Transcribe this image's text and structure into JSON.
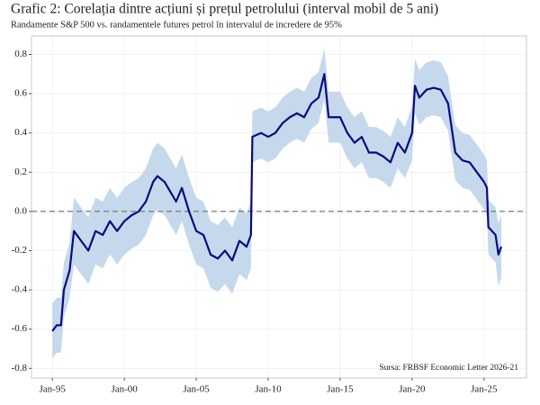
{
  "chart_data": {
    "type": "band-line",
    "title": "Grafic 2: Corelația dintre acțiuni și prețul petrolului (interval mobil de 5 ani)",
    "subtitle": "Randamente S&P 500 vs. randamentele futures petrol în intervalul de incredere de 95%",
    "source": "Sursa: FRBSF Economic Letter 2026-21",
    "color": "#0a0a80",
    "band_color": "#c6d9ec",
    "grid": true,
    "reference_line": 0,
    "x": [
      1995.0,
      1995.3,
      1995.6,
      1995.8,
      1996.2,
      1996.5,
      1997.0,
      1997.5,
      1998.0,
      1998.5,
      1999.0,
      1999.5,
      2000.0,
      2000.5,
      2001.0,
      2001.5,
      2002.0,
      2002.3,
      2002.8,
      2003.2,
      2003.6,
      2004.0,
      2004.5,
      2005.0,
      2005.5,
      2006.0,
      2006.5,
      2007.0,
      2007.5,
      2008.0,
      2008.5,
      2008.8,
      2008.9,
      2009.5,
      2010.0,
      2010.5,
      2011.0,
      2011.5,
      2012.0,
      2012.5,
      2013.0,
      2013.5,
      2013.9,
      2014.2,
      2015.0,
      2015.5,
      2016.0,
      2016.5,
      2017.0,
      2017.5,
      2018.0,
      2018.5,
      2019.0,
      2019.5,
      2020.0,
      2020.2,
      2020.5,
      2021.0,
      2021.5,
      2022.0,
      2022.5,
      2023.0,
      2023.5,
      2024.0,
      2024.5,
      2025.0,
      2025.2,
      2025.3,
      2025.8,
      2026.0,
      2026.2
    ],
    "values": [
      -0.61,
      -0.58,
      -0.58,
      -0.4,
      -0.3,
      -0.1,
      -0.15,
      -0.2,
      -0.1,
      -0.12,
      -0.05,
      -0.1,
      -0.05,
      -0.02,
      0.0,
      0.05,
      0.15,
      0.18,
      0.15,
      0.1,
      0.05,
      0.12,
      0.0,
      -0.1,
      -0.12,
      -0.22,
      -0.24,
      -0.2,
      -0.25,
      -0.15,
      -0.18,
      -0.12,
      0.38,
      0.4,
      0.38,
      0.4,
      0.45,
      0.48,
      0.5,
      0.48,
      0.55,
      0.58,
      0.7,
      0.48,
      0.48,
      0.4,
      0.35,
      0.38,
      0.3,
      0.3,
      0.28,
      0.25,
      0.35,
      0.3,
      0.4,
      0.64,
      0.58,
      0.62,
      0.63,
      0.62,
      0.55,
      0.3,
      0.26,
      0.25,
      0.2,
      0.15,
      0.12,
      -0.08,
      -0.12,
      -0.22,
      -0.18
    ],
    "lower": [
      -0.75,
      -0.72,
      -0.72,
      -0.54,
      -0.44,
      -0.27,
      -0.32,
      -0.37,
      -0.27,
      -0.29,
      -0.22,
      -0.27,
      -0.22,
      -0.19,
      -0.17,
      -0.12,
      -0.02,
      0.01,
      -0.02,
      -0.07,
      -0.12,
      -0.05,
      -0.17,
      -0.27,
      -0.29,
      -0.39,
      -0.41,
      -0.37,
      -0.42,
      -0.32,
      -0.35,
      -0.29,
      0.25,
      0.27,
      0.25,
      0.27,
      0.32,
      0.35,
      0.37,
      0.35,
      0.42,
      0.45,
      0.57,
      0.35,
      0.35,
      0.27,
      0.22,
      0.25,
      0.17,
      0.17,
      0.15,
      0.12,
      0.22,
      0.17,
      0.26,
      0.5,
      0.44,
      0.48,
      0.49,
      0.48,
      0.41,
      0.16,
      0.12,
      0.11,
      0.06,
      0.01,
      -0.02,
      -0.22,
      -0.26,
      -0.38,
      -0.34
    ],
    "upper": [
      -0.47,
      -0.44,
      -0.44,
      -0.26,
      -0.16,
      0.07,
      0.02,
      -0.03,
      0.07,
      0.05,
      0.12,
      0.07,
      0.12,
      0.15,
      0.17,
      0.22,
      0.32,
      0.35,
      0.32,
      0.27,
      0.22,
      0.29,
      0.17,
      0.07,
      0.05,
      -0.05,
      -0.07,
      -0.03,
      -0.08,
      0.02,
      -0.01,
      0.05,
      0.51,
      0.53,
      0.51,
      0.53,
      0.58,
      0.61,
      0.63,
      0.61,
      0.68,
      0.71,
      0.83,
      0.61,
      0.61,
      0.53,
      0.48,
      0.51,
      0.43,
      0.43,
      0.41,
      0.38,
      0.48,
      0.43,
      0.54,
      0.78,
      0.72,
      0.76,
      0.77,
      0.76,
      0.69,
      0.44,
      0.4,
      0.39,
      0.34,
      0.29,
      0.26,
      0.06,
      0.02,
      -0.06,
      -0.02
    ],
    "xlim": [
      1993.55,
      2027.95
    ],
    "xticks": [
      {
        "value": 1995,
        "label": "Jan-95"
      },
      {
        "value": 2000,
        "label": "Jan-00"
      },
      {
        "value": 2005,
        "label": "Jan-05"
      },
      {
        "value": 2010,
        "label": "Jan-10"
      },
      {
        "value": 2015,
        "label": "Jan-15"
      },
      {
        "value": 2020,
        "label": "Jan-20"
      },
      {
        "value": 2025,
        "label": "Jan-25"
      }
    ],
    "ylim": [
      -0.849,
      0.894
    ],
    "yticks": [
      -0.8,
      -0.6,
      -0.4,
      -0.2,
      {
        "value": 0,
        "label": "0.0"
      },
      0.2,
      0.4,
      0.6,
      0.8
    ]
  }
}
